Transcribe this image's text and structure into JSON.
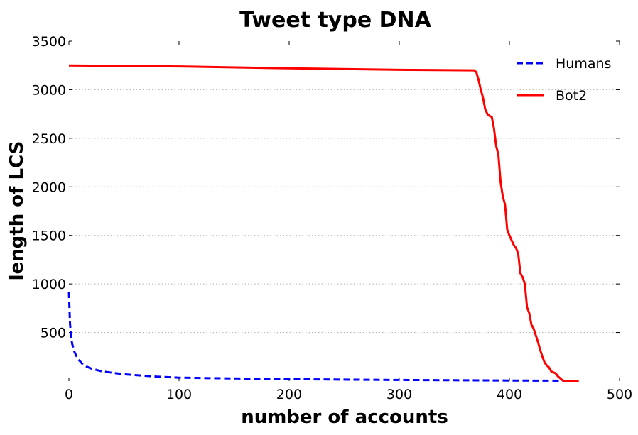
{
  "chart_data": {
    "type": "line",
    "title": "Tweet type DNA",
    "xlabel": "number of accounts",
    "ylabel": "length of LCS",
    "xlim": [
      0,
      500
    ],
    "ylim": [
      0,
      3500
    ],
    "xticks": [
      "0",
      "100",
      "200",
      "300",
      "400",
      "500"
    ],
    "yticks": [
      "500",
      "1000",
      "1500",
      "2000",
      "2500",
      "3000",
      "3500"
    ],
    "xtick_values": [
      0,
      100,
      200,
      300,
      400,
      500
    ],
    "ytick_values": [
      500,
      1000,
      1500,
      2000,
      2500,
      3000,
      3500
    ],
    "grid": "horizontal dotted",
    "legend": "top-right",
    "series": [
      {
        "name": "Humans",
        "color": "#0000ff",
        "style": "dashed",
        "x": [
          0,
          1,
          2,
          3,
          5,
          8,
          12,
          16,
          20,
          30,
          50,
          80,
          100,
          150,
          200,
          250,
          300,
          350,
          400,
          450,
          463
        ],
        "y": [
          920,
          600,
          450,
          380,
          300,
          230,
          180,
          150,
          130,
          100,
          70,
          45,
          35,
          27,
          20,
          15,
          12,
          9,
          6,
          4,
          3
        ]
      },
      {
        "name": "Bot2",
        "color": "#ff0000",
        "style": "solid",
        "x": [
          0,
          100,
          200,
          300,
          368,
          370,
          372,
          374,
          376,
          378,
          380,
          382,
          384,
          386,
          388,
          390,
          392,
          394,
          396,
          398,
          400,
          402,
          404,
          406,
          408,
          410,
          412,
          414,
          416,
          418,
          420,
          422,
          424,
          426,
          428,
          430,
          432,
          434,
          436,
          438,
          440,
          442,
          444,
          446,
          448,
          450,
          452,
          454,
          456,
          458,
          460,
          462,
          463
        ],
        "y": [
          3250,
          3240,
          3220,
          3205,
          3200,
          3180,
          3100,
          3000,
          2920,
          2800,
          2750,
          2730,
          2720,
          2600,
          2420,
          2330,
          2050,
          1900,
          1820,
          1560,
          1500,
          1450,
          1400,
          1370,
          1310,
          1110,
          1070,
          1000,
          760,
          700,
          580,
          540,
          470,
          400,
          320,
          250,
          190,
          160,
          140,
          100,
          90,
          80,
          50,
          30,
          10,
          0,
          0,
          0,
          0,
          0,
          0,
          0,
          0
        ]
      }
    ]
  }
}
